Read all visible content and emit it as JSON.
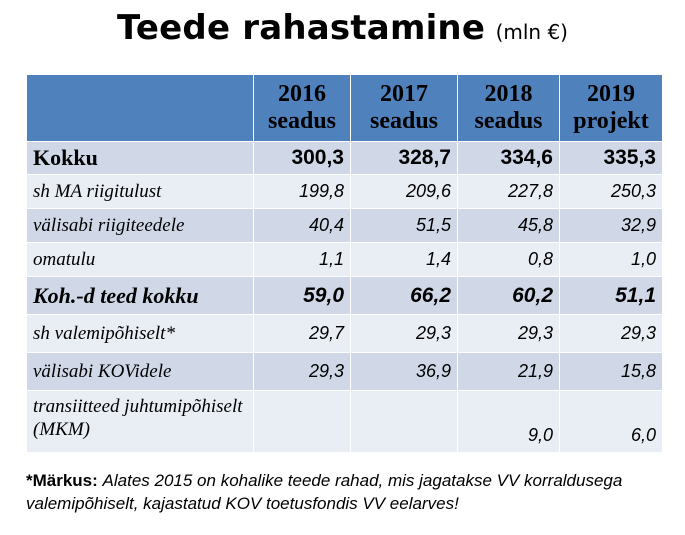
{
  "chart_data": {
    "type": "table",
    "title": "Teede rahastamine",
    "unit": "(mln €)",
    "columns": [
      {
        "year": "2016",
        "status": "seadus"
      },
      {
        "year": "2017",
        "status": "seadus"
      },
      {
        "year": "2018",
        "status": "seadus"
      },
      {
        "year": "2019",
        "status": "projekt"
      }
    ],
    "rows": [
      {
        "label": "Kokku",
        "values": [
          "300,3",
          "328,7",
          "334,6",
          "335,3"
        ]
      },
      {
        "label": "sh MA riigitulust",
        "values": [
          "199,8",
          "209,6",
          "227,8",
          "250,3"
        ]
      },
      {
        "label": "välisabi riigiteedele",
        "values": [
          "40,4",
          "51,5",
          "45,8",
          "32,9"
        ]
      },
      {
        "label": "omatulu",
        "values": [
          "1,1",
          "1,4",
          "0,8",
          "1,0"
        ]
      },
      {
        "label": "Koh.-d teed kokku",
        "values": [
          "59,0",
          "66,2",
          "60,2",
          "51,1"
        ]
      },
      {
        "label": "sh valemipõhiselt*",
        "values": [
          "29,7",
          "29,3",
          "29,3",
          "29,3"
        ]
      },
      {
        "label": "välisabi KOVidele",
        "values": [
          "29,3",
          "36,9",
          "21,9",
          "15,8"
        ]
      },
      {
        "label": "transiitteed juhtumipõhiselt (MKM)",
        "values": [
          "",
          "",
          "9,0",
          "6,0"
        ]
      }
    ],
    "note": {
      "label": "*Märkus:",
      "text": "Alates 2015 on kohalike teede rahad, mis jagatakse VV korraldusega valemipõhiselt, kajastatud KOV toetusfondis VV eelarves!"
    }
  },
  "colors": {
    "header": "#4f81bd",
    "band": "#d0d8e8",
    "plain": "#e9edf4"
  }
}
